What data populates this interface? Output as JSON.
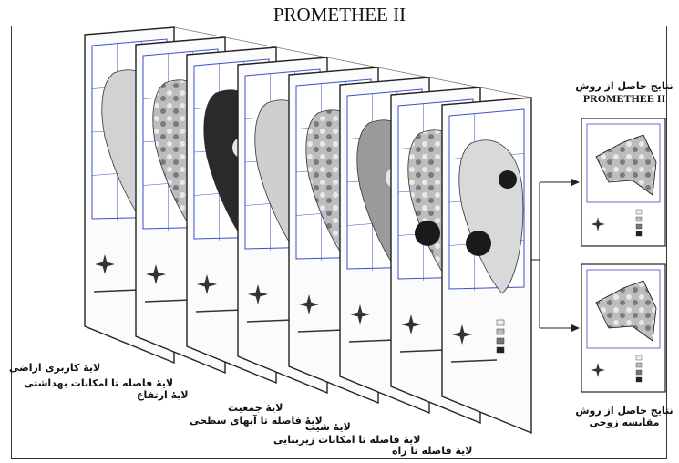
{
  "title": "PROMETHEE II",
  "layers": [
    {
      "label": "لایهٔ کاربری اراضی"
    },
    {
      "label": "لایهٔ فاصله تا امکانات بهداشتی"
    },
    {
      "label": "لایهٔ ارتفاع"
    },
    {
      "label": "لایهٔ جمعیت"
    },
    {
      "label": "لایهٔ فاصله تا آبهای سطحی"
    },
    {
      "label": "لایهٔ شیب"
    },
    {
      "label": "لایهٔ فاصله تا امکانات زیربنایی"
    },
    {
      "label": "لایهٔ فاصله تا راه"
    }
  ],
  "results": {
    "top": {
      "line1": "نتایج حاصل از روش",
      "line2": "PROMETHEE II"
    },
    "bottom": {
      "line1": "نتایج حاصل از روش",
      "line2": "مقایسه زوجی"
    }
  },
  "colors": {
    "grid_blue": "#3a4fc7",
    "ink": "#222222",
    "map_gray": "#b9b9b9",
    "map_dark": "#1a1a1a"
  }
}
